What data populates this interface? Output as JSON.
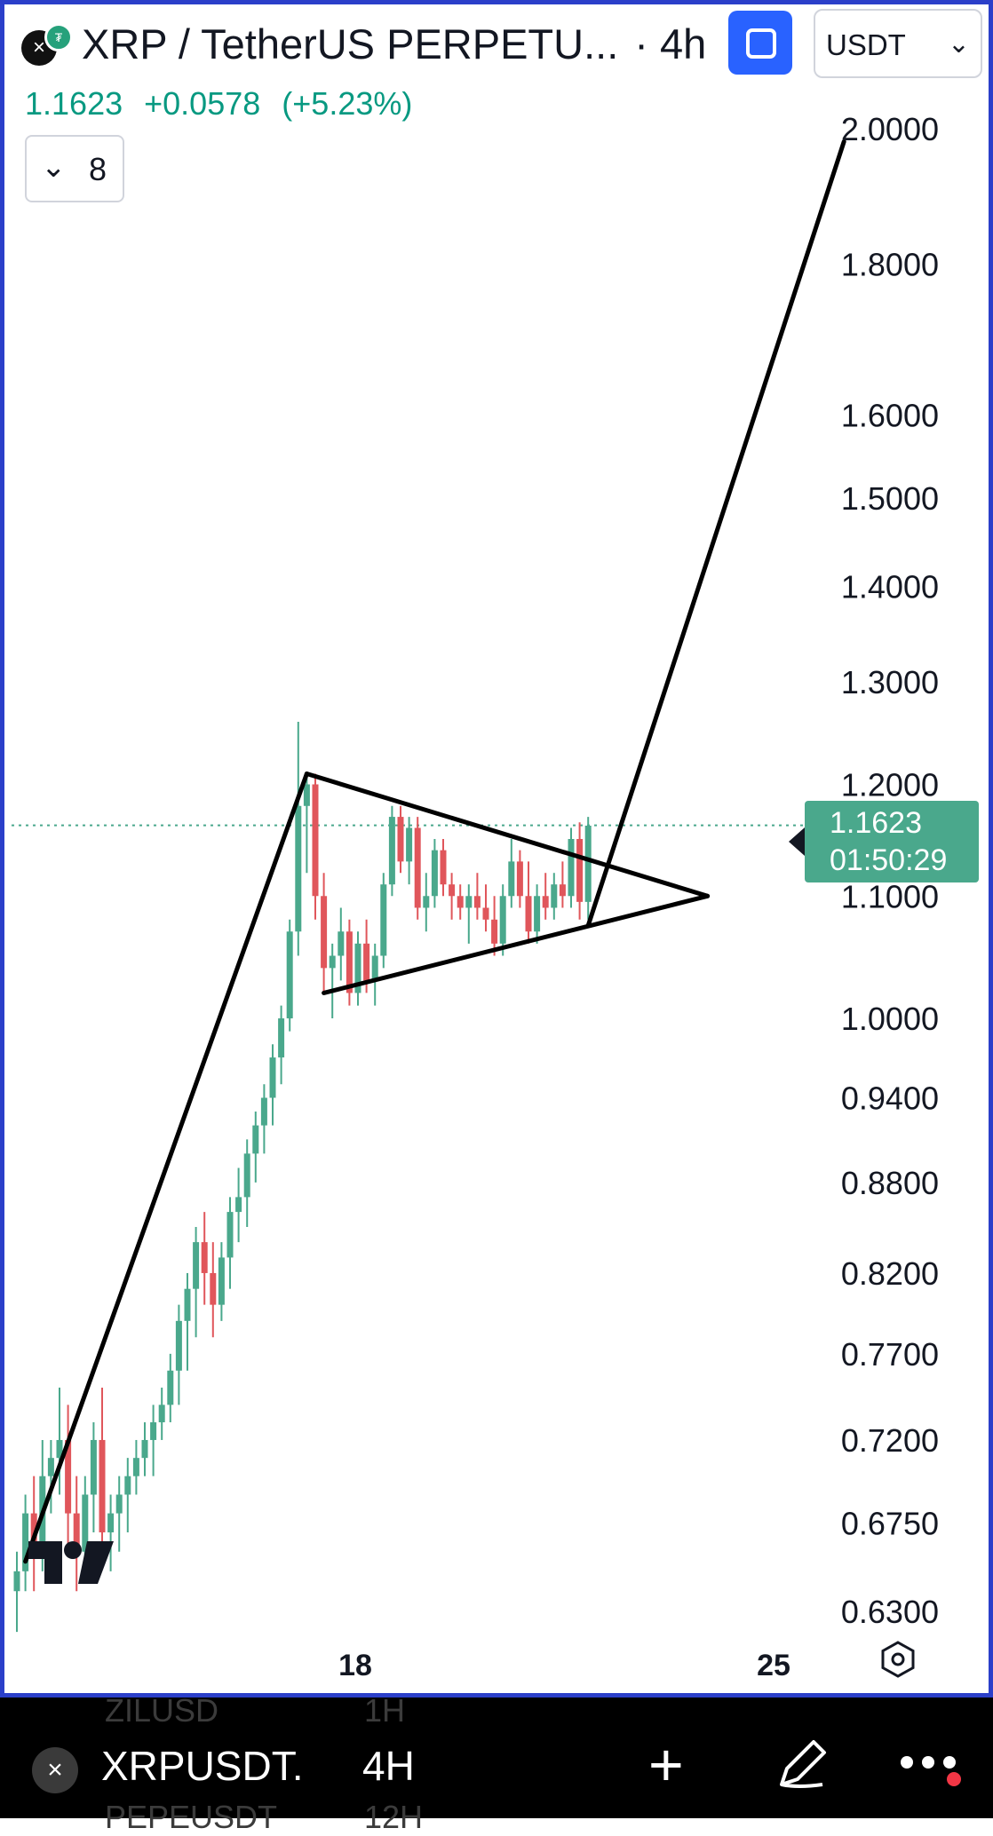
{
  "header": {
    "symbol_icon": "x-close-icon",
    "title": "XRP / TetherUS PERPETU...",
    "separator": "·",
    "interval": "4h",
    "currency": "USDT",
    "price": "1.1623",
    "change": "+0.0578",
    "change_pct": "(+5.23%)",
    "collapse_count": "8"
  },
  "price_scale": {
    "labels": [
      "2.0000",
      "1.8000",
      "1.6000",
      "1.5000",
      "1.4000",
      "1.3000",
      "1.2000",
      "1.1000",
      "1.0000",
      "0.9400",
      "0.8800",
      "0.8200",
      "0.7700",
      "0.7200",
      "0.6750",
      "0.6300"
    ],
    "current_price": "1.1623",
    "countdown": "01:50:29"
  },
  "time_scale": {
    "labels": [
      "18",
      "25"
    ]
  },
  "colors": {
    "up": "#4aa88c",
    "down": "#e0565b",
    "accent": "#2962ff",
    "border": "#2b3fc9",
    "price_badge": "#4aa88c"
  },
  "chart_data": {
    "type": "candlestick",
    "scale": "log",
    "ylim": [
      0.63,
      2.0
    ],
    "x_ticks": [
      "18",
      "25"
    ],
    "last_price": 1.1623,
    "candles": [
      [
        0.64,
        0.66,
        0.62,
        0.65
      ],
      [
        0.65,
        0.69,
        0.64,
        0.68
      ],
      [
        0.68,
        0.7,
        0.64,
        0.66
      ],
      [
        0.66,
        0.72,
        0.65,
        0.7
      ],
      [
        0.7,
        0.72,
        0.68,
        0.71
      ],
      [
        0.71,
        0.75,
        0.69,
        0.72
      ],
      [
        0.72,
        0.74,
        0.66,
        0.68
      ],
      [
        0.68,
        0.7,
        0.64,
        0.66
      ],
      [
        0.66,
        0.7,
        0.65,
        0.69
      ],
      [
        0.69,
        0.73,
        0.67,
        0.72
      ],
      [
        0.72,
        0.75,
        0.66,
        0.67
      ],
      [
        0.67,
        0.69,
        0.65,
        0.68
      ],
      [
        0.68,
        0.7,
        0.66,
        0.69
      ],
      [
        0.69,
        0.71,
        0.67,
        0.7
      ],
      [
        0.7,
        0.72,
        0.69,
        0.71
      ],
      [
        0.71,
        0.73,
        0.7,
        0.72
      ],
      [
        0.72,
        0.74,
        0.7,
        0.73
      ],
      [
        0.73,
        0.75,
        0.72,
        0.74
      ],
      [
        0.74,
        0.77,
        0.73,
        0.76
      ],
      [
        0.76,
        0.8,
        0.74,
        0.79
      ],
      [
        0.79,
        0.82,
        0.76,
        0.81
      ],
      [
        0.81,
        0.85,
        0.78,
        0.84
      ],
      [
        0.84,
        0.86,
        0.8,
        0.82
      ],
      [
        0.82,
        0.84,
        0.78,
        0.8
      ],
      [
        0.8,
        0.84,
        0.79,
        0.83
      ],
      [
        0.83,
        0.87,
        0.81,
        0.86
      ],
      [
        0.86,
        0.89,
        0.84,
        0.87
      ],
      [
        0.87,
        0.91,
        0.85,
        0.9
      ],
      [
        0.9,
        0.93,
        0.88,
        0.92
      ],
      [
        0.92,
        0.95,
        0.9,
        0.94
      ],
      [
        0.94,
        0.98,
        0.92,
        0.97
      ],
      [
        0.97,
        1.01,
        0.95,
        1.0
      ],
      [
        1.0,
        1.08,
        0.99,
        1.07
      ],
      [
        1.07,
        1.26,
        1.05,
        1.18
      ],
      [
        1.18,
        1.21,
        1.12,
        1.2
      ],
      [
        1.2,
        1.21,
        1.08,
        1.1
      ],
      [
        1.1,
        1.12,
        1.02,
        1.04
      ],
      [
        1.04,
        1.06,
        1.0,
        1.05
      ],
      [
        1.05,
        1.09,
        1.03,
        1.07
      ],
      [
        1.07,
        1.08,
        1.01,
        1.02
      ],
      [
        1.02,
        1.07,
        1.01,
        1.06
      ],
      [
        1.06,
        1.08,
        1.02,
        1.03
      ],
      [
        1.03,
        1.06,
        1.01,
        1.05
      ],
      [
        1.05,
        1.12,
        1.04,
        1.11
      ],
      [
        1.11,
        1.18,
        1.1,
        1.17
      ],
      [
        1.17,
        1.18,
        1.12,
        1.13
      ],
      [
        1.13,
        1.17,
        1.11,
        1.16
      ],
      [
        1.16,
        1.17,
        1.08,
        1.09
      ],
      [
        1.09,
        1.12,
        1.07,
        1.1
      ],
      [
        1.1,
        1.15,
        1.09,
        1.14
      ],
      [
        1.14,
        1.15,
        1.1,
        1.11
      ],
      [
        1.11,
        1.12,
        1.08,
        1.1
      ],
      [
        1.1,
        1.11,
        1.08,
        1.09
      ],
      [
        1.09,
        1.11,
        1.06,
        1.1
      ],
      [
        1.1,
        1.12,
        1.08,
        1.09
      ],
      [
        1.09,
        1.11,
        1.07,
        1.08
      ],
      [
        1.08,
        1.1,
        1.05,
        1.06
      ],
      [
        1.06,
        1.11,
        1.05,
        1.1
      ],
      [
        1.1,
        1.15,
        1.09,
        1.13
      ],
      [
        1.13,
        1.14,
        1.09,
        1.1
      ],
      [
        1.1,
        1.13,
        1.06,
        1.07
      ],
      [
        1.07,
        1.11,
        1.06,
        1.1
      ],
      [
        1.1,
        1.12,
        1.08,
        1.09
      ],
      [
        1.09,
        1.12,
        1.08,
        1.11
      ],
      [
        1.11,
        1.13,
        1.09,
        1.1
      ],
      [
        1.1,
        1.16,
        1.09,
        1.15
      ],
      [
        1.15,
        1.165,
        1.08,
        1.095
      ],
      [
        1.095,
        1.17,
        1.08,
        1.162
      ]
    ],
    "drawings": [
      {
        "type": "trend-line",
        "points": [
          [
            1,
            0.655
          ],
          [
            34,
            1.21
          ]
        ]
      },
      {
        "type": "trend-line",
        "points": [
          [
            34,
            1.21
          ],
          [
            81,
            1.1
          ]
        ]
      },
      {
        "type": "trend-line",
        "points": [
          [
            36,
            1.02
          ],
          [
            81,
            1.1
          ]
        ]
      },
      {
        "type": "trend-line",
        "points": [
          [
            67,
            1.075
          ],
          [
            97,
            1.98
          ]
        ]
      }
    ]
  },
  "bottom_bar": {
    "symbol": "XRPUSDT.",
    "interval": "4H",
    "ghost_top": [
      "ZILUSD",
      "1H"
    ],
    "ghost_bottom": [
      "PEPEUSDT",
      "12H"
    ]
  }
}
